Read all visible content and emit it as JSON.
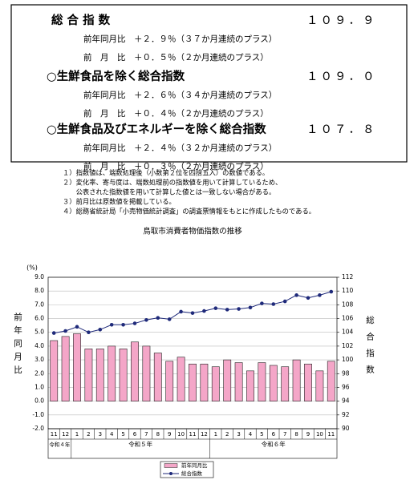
{
  "summary": [
    {
      "title": "総 合 指 数",
      "value": "１０９．９",
      "rows": [
        "前年同月比　＋２．９％（３７か月連続のプラス）",
        "前　月　比　＋０．５％（２か月連続のプラス）"
      ]
    },
    {
      "title": "○生鮮食品を除く総合指数",
      "value": "１０９．０",
      "rows": [
        "前年同月比　＋２．６％（３４か月連続のプラス）",
        "前　月　比　＋０．４％（２か月連続のプラス）"
      ]
    },
    {
      "title": "○生鮮食品及びエネルギーを除く総合指数",
      "value": "１０７．８",
      "rows": [
        "前年同月比　＋２．４％（３２か月連続のプラス）",
        "前　月　比　＋０．３％（２か月連続のプラス）"
      ]
    }
  ],
  "notes": [
    "１）指数値は、端数処理後（小数第２位を四捨五入）の数値である。",
    "２）変化率、寄与度は、端数処理前の指数値を用いて計算しているため、",
    "　　公表された指数値を用いて計算した値とは一致しない場合がある。",
    "３）前月比は原数値を掲載している。",
    "４）総務省統計局「小売物価統計調査」の調査票情報をもとに作成したものである。"
  ],
  "chart_data": {
    "type": "combo",
    "title": "鳥取市消費者物価指数の推移",
    "y_unit": "(%)",
    "y_label": "前年同月比",
    "y2_label": "総合指数",
    "categories": [
      "11",
      "12",
      "1",
      "2",
      "3",
      "4",
      "5",
      "6",
      "7",
      "8",
      "9",
      "10",
      "11",
      "12",
      "1",
      "2",
      "3",
      "4",
      "5",
      "6",
      "7",
      "8",
      "9",
      "10",
      "11"
    ],
    "year_labels": [
      "令和４年",
      null,
      "令和５年",
      null,
      null,
      null,
      null,
      null,
      null,
      null,
      null,
      null,
      null,
      null,
      "令和６年",
      null,
      null,
      null,
      null,
      null,
      null,
      null,
      null,
      null,
      null
    ],
    "series": [
      {
        "name": "前年同月比",
        "type": "bar",
        "color": "#f4a6c8",
        "values": [
          4.4,
          4.7,
          4.9,
          3.8,
          3.8,
          4.0,
          3.8,
          4.3,
          4.0,
          3.5,
          2.9,
          3.2,
          2.7,
          2.7,
          2.5,
          3.0,
          2.8,
          2.2,
          2.8,
          2.6,
          2.5,
          3.0,
          2.7,
          2.2,
          2.9
        ]
      },
      {
        "name": "総合指数",
        "type": "line",
        "axis": "y2",
        "color": "#1f2a7a",
        "values": [
          103.9,
          104.2,
          104.8,
          104.0,
          104.4,
          105.1,
          105.1,
          105.3,
          105.8,
          106.1,
          105.9,
          107.0,
          106.8,
          107.1,
          107.5,
          107.3,
          107.4,
          107.6,
          108.2,
          108.1,
          108.5,
          109.4,
          109.0,
          109.4,
          109.9
        ]
      }
    ],
    "ylim": [
      -2,
      9
    ],
    "yticks": [
      {
        "value": -2,
        "label": "-2.0"
      },
      {
        "value": -1,
        "label": "-1.0"
      },
      {
        "value": 0,
        "label": "0.0"
      },
      {
        "value": 1,
        "label": "1.0"
      },
      {
        "value": 2,
        "label": "2.0"
      },
      {
        "value": 3,
        "label": "3.0"
      },
      {
        "value": 4,
        "label": "4.0"
      },
      {
        "value": 5,
        "label": "5.0"
      },
      {
        "value": 6,
        "label": "6.0"
      },
      {
        "value": 7,
        "label": "7.0"
      },
      {
        "value": 8,
        "label": "8.0"
      },
      {
        "value": 9,
        "label": "9.0"
      }
    ],
    "y2lim": [
      90,
      112
    ],
    "y2ticks": [
      90,
      92,
      94,
      96,
      98,
      100,
      102,
      104,
      106,
      108,
      110,
      112
    ],
    "grid": true
  }
}
